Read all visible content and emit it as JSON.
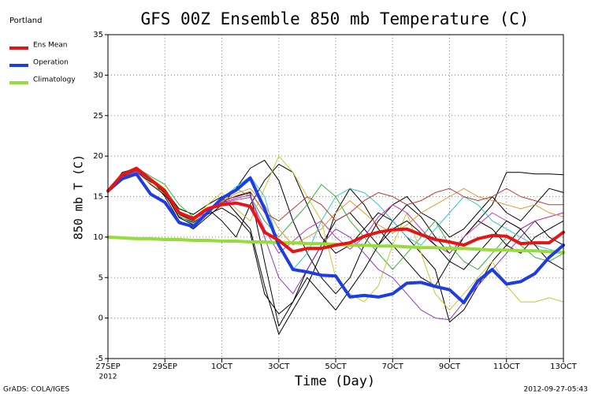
{
  "chart_data": {
    "type": "line",
    "title": "GFS 00Z Ensemble 850 mb Temperature (C)",
    "ylabel": "850 mb T (C)",
    "xlabel": "Time (Day)",
    "legend_title": "Portland",
    "year_label": "2012",
    "footer_left": "GrADS: COLA/IGES",
    "footer_right": "2012-09-27-05:43",
    "grid": true,
    "legend": "upper left",
    "xlim": [
      0,
      16
    ],
    "ylim": [
      -5,
      35
    ],
    "yticks": [
      -5,
      0,
      5,
      10,
      15,
      20,
      25,
      30,
      35
    ],
    "xticks": [
      {
        "value": 0,
        "label": "27SEP"
      },
      {
        "value": 2,
        "label": "29SEP"
      },
      {
        "value": 4,
        "label": "1OCT"
      },
      {
        "value": 6,
        "label": "3OCT"
      },
      {
        "value": 8,
        "label": "5OCT"
      },
      {
        "value": 10,
        "label": "7OCT"
      },
      {
        "value": 12,
        "label": "9OCT"
      },
      {
        "value": 14,
        "label": "11OCT"
      },
      {
        "value": 16,
        "label": "13OCT"
      }
    ],
    "x": [
      0,
      0.5,
      1,
      1.5,
      2,
      2.5,
      3,
      3.5,
      4,
      4.5,
      5,
      5.5,
      6,
      6.5,
      7,
      7.5,
      8,
      8.5,
      9,
      9.5,
      10,
      10.5,
      11,
      11.5,
      12,
      12.5,
      13,
      13.5,
      14,
      14.5,
      15,
      15.5,
      16
    ],
    "members": [
      {
        "color": "#000000",
        "values": [
          15.5,
          17.8,
          18.3,
          17.0,
          15.5,
          12.5,
          11.8,
          13.0,
          14.5,
          15.0,
          15.5,
          7.0,
          -1.0,
          2.0,
          6.0,
          9.0,
          12.0,
          13.0,
          11.0,
          9.0,
          12.0,
          14.0,
          12.5,
          10.0,
          8.0,
          10.0,
          12.0,
          14.0,
          18.0,
          18.0,
          17.8,
          17.8,
          17.7
        ]
      },
      {
        "color": "#000000",
        "values": [
          15.8,
          17.5,
          18.0,
          16.8,
          15.8,
          13.5,
          12.8,
          14.0,
          15.0,
          13.0,
          11.0,
          4.0,
          -2.0,
          1.0,
          4.0,
          8.0,
          13.0,
          16.0,
          14.0,
          11.0,
          9.0,
          7.0,
          5.0,
          4.0,
          7.0,
          10.0,
          12.0,
          11.0,
          9.0,
          8.0,
          10.0,
          11.0,
          12.0
        ]
      },
      {
        "color": "#000000",
        "values": [
          15.6,
          18.0,
          18.5,
          17.2,
          15.0,
          12.0,
          11.0,
          12.5,
          14.0,
          16.0,
          18.5,
          19.5,
          17.0,
          12.0,
          8.0,
          5.0,
          3.0,
          5.0,
          9.0,
          12.0,
          14.0,
          15.0,
          13.0,
          12.0,
          10.0,
          11.0,
          13.0,
          15.0,
          13.0,
          12.0,
          14.0,
          16.0,
          15.5
        ]
      },
      {
        "color": "#000000",
        "values": [
          15.7,
          17.6,
          18.2,
          16.5,
          15.2,
          12.8,
          12.0,
          13.5,
          12.0,
          10.0,
          14.0,
          17.0,
          19.0,
          18.0,
          14.0,
          10.0,
          8.0,
          9.0,
          11.0,
          13.0,
          12.0,
          10.0,
          8.0,
          6.0,
          -0.5,
          1.0,
          4.0,
          7.0,
          9.0,
          11.0,
          12.0,
          10.0,
          9.0
        ]
      },
      {
        "color": "#32b432",
        "values": [
          15.9,
          17.9,
          18.6,
          17.5,
          16.5,
          14.0,
          12.5,
          13.0,
          14.5,
          16.0,
          15.0,
          12.0,
          10.0,
          12.0,
          14.0,
          16.5,
          15.0,
          12.0,
          10.0,
          8.0,
          6.0,
          8.0,
          10.0,
          12.0,
          9.0,
          7.0,
          6.0,
          8.0,
          10.0,
          9.0,
          7.5,
          7.0,
          8.0
        ]
      },
      {
        "color": "#c8c832",
        "values": [
          15.4,
          17.7,
          18.4,
          17.3,
          16.0,
          13.0,
          12.2,
          14.0,
          15.5,
          13.5,
          12.0,
          16.0,
          20.0,
          18.0,
          15.0,
          12.0,
          5.0,
          3.0,
          2.0,
          4.0,
          9.0,
          13.0,
          8.0,
          3.0,
          1.0,
          3.0,
          5.0,
          7.0,
          4.0,
          2.0,
          2.0,
          2.5,
          2.0
        ]
      },
      {
        "color": "#32c8c8",
        "values": [
          15.6,
          17.8,
          18.2,
          16.9,
          15.4,
          12.6,
          11.6,
          13.2,
          14.8,
          16.2,
          17.5,
          15.0,
          9.0,
          6.0,
          8.0,
          12.0,
          15.0,
          16.0,
          15.5,
          14.0,
          12.0,
          10.0,
          9.0,
          11.0,
          13.0,
          15.0,
          14.0,
          12.0,
          11.0,
          10.0,
          9.0,
          8.5,
          8.0
        ]
      },
      {
        "color": "#9632c8",
        "values": [
          15.8,
          17.6,
          18.1,
          17.0,
          15.6,
          12.9,
          12.4,
          13.4,
          14.2,
          14.8,
          15.2,
          10.0,
          5.0,
          3.0,
          6.0,
          9.0,
          11.0,
          10.0,
          8.0,
          6.0,
          5.0,
          3.0,
          1.0,
          0.0,
          -0.2,
          2.0,
          4.0,
          6.0,
          8.0,
          10.0,
          12.0,
          12.5,
          13.0
        ]
      },
      {
        "color": "#c832c8",
        "values": [
          15.7,
          17.9,
          18.4,
          17.1,
          15.7,
          13.2,
          12.1,
          13.1,
          14.1,
          14.6,
          14.9,
          11.0,
          8.0,
          9.5,
          11.0,
          12.0,
          10.0,
          8.5,
          10.0,
          12.5,
          14.0,
          13.0,
          11.0,
          9.0,
          8.0,
          10.0,
          11.5,
          13.0,
          12.0,
          11.0,
          12.0,
          12.5,
          13.0
        ]
      },
      {
        "color": "#e69632",
        "values": [
          15.5,
          17.4,
          18.0,
          16.6,
          15.3,
          12.7,
          11.9,
          13.6,
          14.4,
          15.4,
          16.0,
          14.0,
          11.0,
          9.0,
          10.0,
          11.0,
          13.0,
          14.5,
          13.0,
          11.5,
          10.5,
          11.5,
          13.0,
          14.0,
          15.0,
          16.0,
          15.0,
          14.5,
          14.0,
          13.5,
          14.0,
          13.0,
          12.5
        ]
      },
      {
        "color": "#000000",
        "values": [
          15.6,
          17.7,
          18.3,
          17.0,
          15.4,
          12.4,
          11.5,
          12.8,
          13.6,
          12.5,
          10.5,
          3.0,
          0.5,
          2.0,
          5.0,
          3.0,
          1.0,
          3.5,
          6.0,
          9.0,
          11.0,
          12.0,
          10.5,
          9.0,
          7.0,
          6.0,
          8.0,
          10.0,
          12.0,
          11.0,
          9.0,
          7.0,
          6.0
        ]
      },
      {
        "color": "#c83232",
        "values": [
          15.8,
          17.8,
          18.2,
          17.2,
          15.9,
          13.1,
          12.3,
          13.3,
          14.3,
          15.1,
          15.6,
          13.0,
          12.0,
          13.5,
          15.0,
          14.0,
          12.0,
          13.0,
          14.5,
          15.5,
          15.0,
          14.0,
          14.5,
          15.5,
          16.0,
          15.0,
          14.5,
          15.0,
          16.0,
          15.0,
          14.5,
          14.0,
          14.0
        ]
      }
    ],
    "series": [
      {
        "name": "Ens Mean",
        "color": "#e61414",
        "values": [
          15.7,
          17.7,
          18.5,
          17.1,
          15.7,
          13.0,
          12.3,
          13.5,
          14.0,
          14.2,
          13.8,
          10.6,
          9.6,
          8.2,
          8.6,
          8.6,
          9.0,
          9.3,
          10.1,
          10.6,
          10.9,
          11.0,
          10.3,
          9.7,
          9.4,
          9.0,
          9.8,
          10.2,
          10.1,
          9.2,
          9.3,
          9.3,
          10.6
        ]
      },
      {
        "name": "Operation",
        "color": "#1e3ce6",
        "values": [
          15.7,
          17.2,
          17.8,
          15.3,
          14.3,
          11.8,
          11.3,
          13.0,
          14.8,
          15.8,
          17.3,
          13.5,
          9.0,
          6.0,
          5.7,
          5.3,
          5.2,
          2.6,
          2.8,
          2.6,
          3.0,
          4.3,
          4.4,
          3.9,
          3.5,
          1.9,
          4.6,
          6.0,
          4.2,
          4.5,
          5.5,
          7.5,
          9.0
        ]
      },
      {
        "name": "Climatology",
        "color": "#96dc3c",
        "values": [
          10.0,
          9.9,
          9.8,
          9.8,
          9.7,
          9.7,
          9.6,
          9.6,
          9.5,
          9.5,
          9.4,
          9.4,
          9.3,
          9.3,
          9.2,
          9.2,
          9.1,
          9.0,
          9.0,
          8.9,
          8.9,
          8.8,
          8.7,
          8.7,
          8.6,
          8.6,
          8.5,
          8.4,
          8.4,
          8.3,
          8.3,
          8.2,
          8.1
        ]
      }
    ]
  }
}
